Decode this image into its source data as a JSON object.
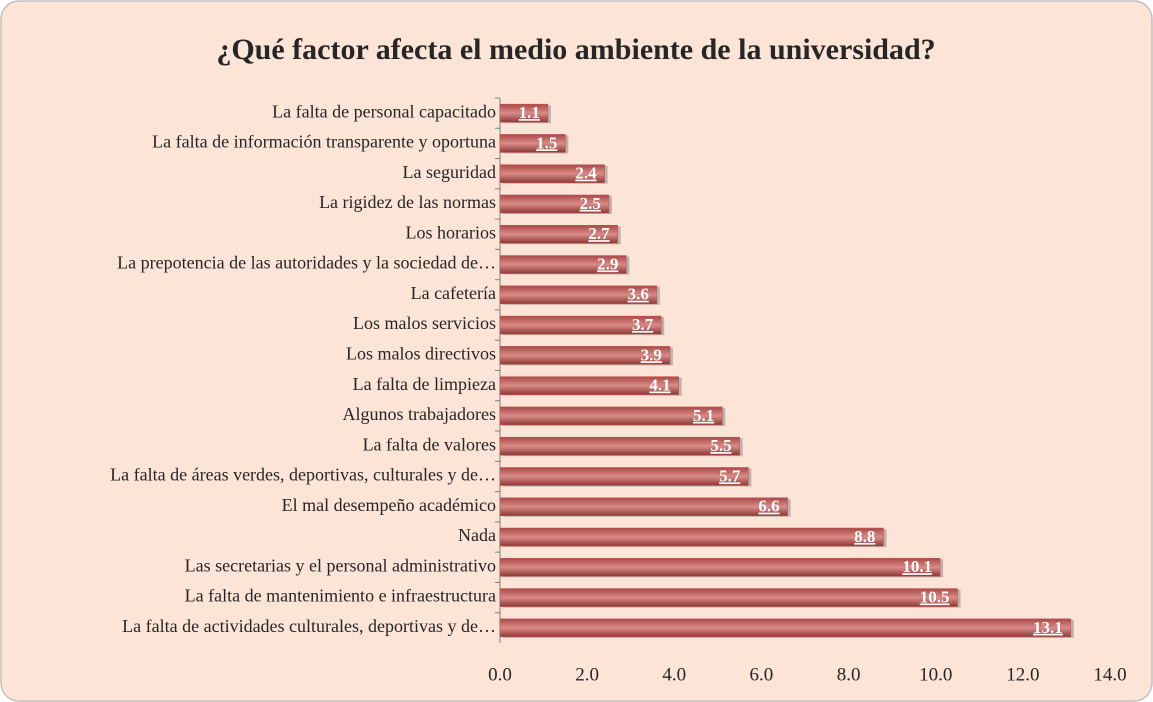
{
  "chart_data": {
    "type": "bar",
    "orientation": "horizontal",
    "title": "¿Qué factor afecta el medio ambiente de la universidad?",
    "categories": [
      "La falta de personal capacitado",
      "La falta de información transparente y oportuna",
      "La seguridad",
      "La rigidez de las normas",
      "Los horarios",
      "La prepotencia de las autoridades y la sociedad de…",
      "La cafetería",
      "Los malos servicios",
      "Los malos directivos",
      "La falta de limpieza",
      "Algunos trabajadores",
      "La falta de valores",
      "La falta de áreas verdes, deportivas, culturales y de…",
      "El mal desempeño académico",
      "Nada",
      "Las secretarias y el personal administrativo",
      "La falta de mantenimiento e infraestructura",
      "La falta de actividades culturales, deportivas y de…"
    ],
    "values": [
      1.1,
      1.5,
      2.4,
      2.5,
      2.7,
      2.9,
      3.6,
      3.7,
      3.9,
      4.1,
      5.1,
      5.5,
      5.7,
      6.6,
      8.8,
      10.1,
      10.5,
      13.1
    ],
    "color": "#c0504d",
    "xlim": [
      0,
      14
    ],
    "xticks": [
      {
        "value": 0,
        "label": "0.0"
      },
      {
        "value": 2,
        "label": "2.0"
      },
      {
        "value": 4,
        "label": "4.0"
      },
      {
        "value": 6,
        "label": "6.0"
      },
      {
        "value": 8,
        "label": "8.0"
      },
      {
        "value": 10,
        "label": "10.0"
      },
      {
        "value": 12,
        "label": "12.0"
      },
      {
        "value": 14,
        "label": "14.0"
      }
    ],
    "grid": false
  }
}
